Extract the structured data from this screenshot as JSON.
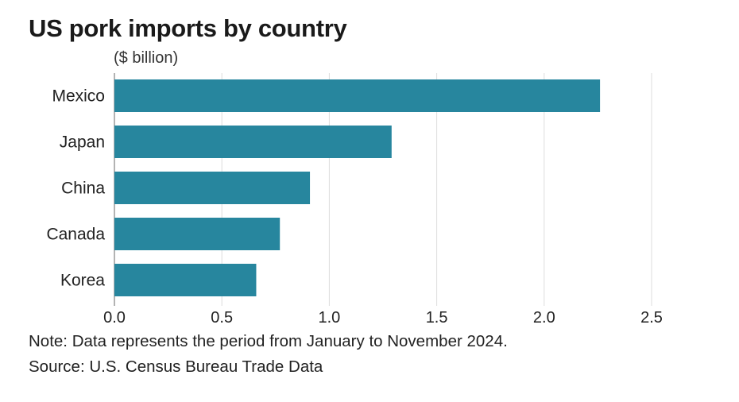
{
  "chart_data": {
    "type": "bar",
    "orientation": "horizontal",
    "title": "US pork imports by country",
    "unit_label": "($ billion)",
    "categories": [
      "Mexico",
      "Japan",
      "China",
      "Canada",
      "Korea"
    ],
    "values": [
      2.26,
      1.29,
      0.91,
      0.77,
      0.66
    ],
    "xlim": [
      0,
      2.5
    ],
    "xticks": [
      "0.0",
      "0.5",
      "1.0",
      "1.5",
      "2.0",
      "2.5"
    ],
    "grid": true,
    "bar_color": "#27869e"
  },
  "notes": {
    "note": "Note: Data represents the period from January to November 2024.",
    "source": "Source: U.S. Census Bureau Trade Data"
  }
}
